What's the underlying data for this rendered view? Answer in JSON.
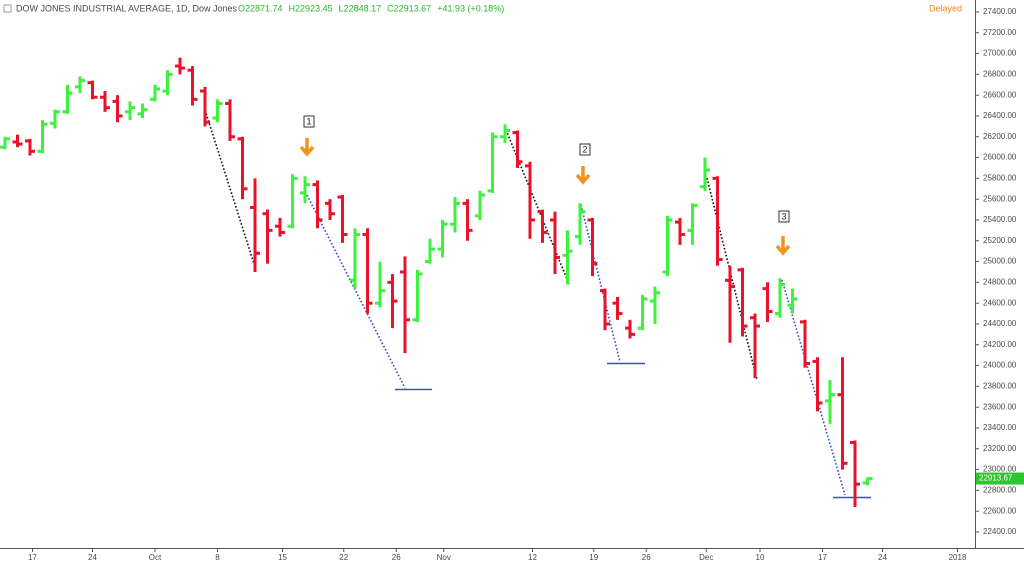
{
  "chart_data": {
    "type": "ohlc",
    "title": "DOW JONES INDUSTRIAL AVERAGE, 1D, Dow Jones",
    "legend_values": [
      "O22871.74",
      "H22923.45",
      "L22848.17",
      "C22913.67",
      "+41.93 (+0.18%)"
    ],
    "status": "Delayed",
    "last_price_label": "22913.67",
    "last_price": 22913.67,
    "annotations": [
      "1",
      "2",
      "3"
    ],
    "up_color": "#3cf23c",
    "down_color": "#e8132b",
    "open": [
      26100,
      26150,
      26160,
      26060,
      26330,
      26440,
      26680,
      26720,
      26580,
      26540,
      26440,
      26420,
      26560,
      26640,
      26880,
      26840,
      26640,
      26380,
      26520,
      26180,
      25520,
      25460,
      25340,
      25340,
      25660,
      25740,
      25560,
      25620,
      24820,
      25260,
      24600,
      24800,
      24900,
      24440,
      25000,
      25120,
      25360,
      25560,
      25440,
      25680,
      26200,
      26240,
      25920,
      25480,
      25400,
      25060,
      25240,
      25400,
      24720,
      24600,
      24360,
      24360,
      24620,
      24900,
      25380,
      25300,
      25720,
      25800,
      24820,
      24920,
      24460,
      24740,
      24500,
      24580,
      24420,
      24040,
      23660,
      23720,
      23260,
      22871.74
    ],
    "high": [
      26200,
      26220,
      26180,
      26360,
      26460,
      26700,
      26780,
      26740,
      26640,
      26600,
      26540,
      26520,
      26700,
      26840,
      26960,
      26880,
      26680,
      26560,
      26560,
      26200,
      25800,
      25500,
      25420,
      25840,
      25820,
      25780,
      25600,
      25640,
      25320,
      25320,
      25000,
      24880,
      25050,
      24920,
      25220,
      25400,
      25620,
      25600,
      25680,
      26240,
      26320,
      26260,
      25960,
      25500,
      25480,
      25300,
      25560,
      25420,
      24740,
      24660,
      24440,
      24680,
      24760,
      25440,
      25420,
      25560,
      26000,
      25820,
      24960,
      24940,
      24500,
      24800,
      24840,
      24740,
      24440,
      24080,
      23860,
      24080,
      23280,
      22923.45
    ],
    "low": [
      26080,
      26100,
      26020,
      26040,
      26280,
      26420,
      26620,
      26560,
      26440,
      26340,
      26360,
      26380,
      26540,
      26600,
      26800,
      26500,
      26300,
      26340,
      26160,
      25600,
      24900,
      24980,
      25240,
      25320,
      25560,
      25320,
      25400,
      25180,
      24740,
      24500,
      24560,
      24360,
      24120,
      24420,
      24980,
      25040,
      25280,
      25200,
      25400,
      25660,
      26140,
      25900,
      25220,
      25180,
      24880,
      24780,
      25160,
      24860,
      24340,
      24440,
      24260,
      24340,
      24400,
      24860,
      25160,
      25160,
      25680,
      24960,
      24220,
      24280,
      23880,
      24420,
      24460,
      24500,
      23980,
      23560,
      23440,
      23000,
      22640,
      22848.17
    ],
    "close": [
      26180,
      26130,
      26060,
      26320,
      26440,
      26620,
      26740,
      26580,
      26480,
      26400,
      26480,
      26460,
      26660,
      26800,
      26860,
      26560,
      26340,
      26520,
      26200,
      25700,
      25080,
      25300,
      25280,
      25800,
      25740,
      25400,
      25460,
      25260,
      25260,
      24600,
      24720,
      24620,
      24440,
      24880,
      25120,
      25360,
      25560,
      25300,
      25640,
      26200,
      26260,
      25960,
      25400,
      25280,
      25040,
      25100,
      25480,
      24980,
      24400,
      24500,
      24300,
      24640,
      24700,
      25400,
      25260,
      25540,
      25880,
      25020,
      24760,
      24380,
      24380,
      24520,
      24780,
      24640,
      24020,
      23640,
      23720,
      23060,
      22860,
      22913.67
    ],
    "xlim": [
      -0.4,
      77.6
    ],
    "xticks": [
      {
        "value": 2.2,
        "label": "17"
      },
      {
        "value": 7,
        "label": "24"
      },
      {
        "value": 12,
        "label": "Oct"
      },
      {
        "value": 17,
        "label": "8"
      },
      {
        "value": 22.2,
        "label": "15"
      },
      {
        "value": 27.1,
        "label": "22"
      },
      {
        "value": 31.3,
        "label": "26"
      },
      {
        "value": 35.1,
        "label": "Nov"
      },
      {
        "value": 42.2,
        "label": "12"
      },
      {
        "value": 47.1,
        "label": "19"
      },
      {
        "value": 51.3,
        "label": "26"
      },
      {
        "value": 56.1,
        "label": "Dec"
      },
      {
        "value": 60.4,
        "label": "10"
      },
      {
        "value": 65.4,
        "label": "17"
      },
      {
        "value": 70.2,
        "label": "24"
      },
      {
        "value": 76.2,
        "label": "2018"
      }
    ],
    "ylim": [
      22246,
      27515
    ],
    "yticks": [
      {
        "value": 27400,
        "label": "27400.00"
      },
      {
        "value": 27200,
        "label": "27200.00"
      },
      {
        "value": 27000,
        "label": "27000.00"
      },
      {
        "value": 26800,
        "label": "26800.00"
      },
      {
        "value": 26600,
        "label": "26600.00"
      },
      {
        "value": 26400,
        "label": "26400.00"
      },
      {
        "value": 26200,
        "label": "26200.00"
      },
      {
        "value": 26000,
        "label": "26000.00"
      },
      {
        "value": 25800,
        "label": "25800.00"
      },
      {
        "value": 25600,
        "label": "25600.00"
      },
      {
        "value": 25400,
        "label": "25400.00"
      },
      {
        "value": 25200,
        "label": "25200.00"
      },
      {
        "value": 25000,
        "label": "25000.00"
      },
      {
        "value": 24800,
        "label": "24800.00"
      },
      {
        "value": 24600,
        "label": "24600.00"
      },
      {
        "value": 24400,
        "label": "24400.00"
      },
      {
        "value": 24200,
        "label": "24200.00"
      },
      {
        "value": 24000,
        "label": "24000.00"
      },
      {
        "value": 23800,
        "label": "23800.00"
      },
      {
        "value": 23600,
        "label": "23600.00"
      },
      {
        "value": 23400,
        "label": "23400.00"
      },
      {
        "value": 23200,
        "label": "23200.00"
      },
      {
        "value": 23000,
        "label": "23000.00"
      },
      {
        "value": 22800,
        "label": "22800.00"
      },
      {
        "value": 22600,
        "label": "22600.00"
      },
      {
        "value": 22400,
        "label": "22400.00"
      }
    ]
  }
}
